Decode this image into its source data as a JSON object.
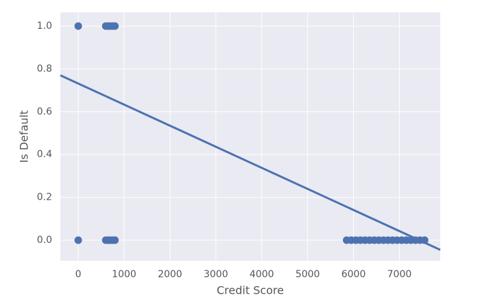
{
  "chart_data": {
    "type": "scatter",
    "x_label": "Credit Score",
    "y_label": "Is Default",
    "x": [
      0,
      600,
      650,
      700,
      750,
      800,
      0,
      600,
      650,
      700,
      750,
      800,
      5850,
      5950,
      6050,
      6150,
      6250,
      6350,
      6450,
      6550,
      6650,
      6750,
      6850,
      6950,
      7050,
      7150,
      7250,
      7350,
      7450,
      7550
    ],
    "values": [
      1,
      1,
      1,
      1,
      1,
      1,
      0,
      0,
      0,
      0,
      0,
      0,
      0,
      0,
      0,
      0,
      0,
      0,
      0,
      0,
      0,
      0,
      0,
      0,
      0,
      0,
      0,
      0,
      0,
      0
    ],
    "color": "#4c72b0",
    "fit_line": {
      "x": [
        -390,
        7890
      ],
      "values": [
        0.77,
        -0.045
      ],
      "color": "#4c72b0"
    },
    "xlim": [
      -390,
      7890
    ],
    "ylim": [
      -0.096,
      1.064
    ],
    "xticks": [
      0,
      1000,
      2000,
      3000,
      4000,
      5000,
      6000,
      7000
    ],
    "yticks": [
      {
        "value": 0,
        "label": "0.0"
      },
      0.2,
      0.4,
      0.6,
      0.8,
      {
        "value": 1,
        "label": "1.0"
      }
    ],
    "grid": true,
    "background": "#eaeaf2"
  }
}
